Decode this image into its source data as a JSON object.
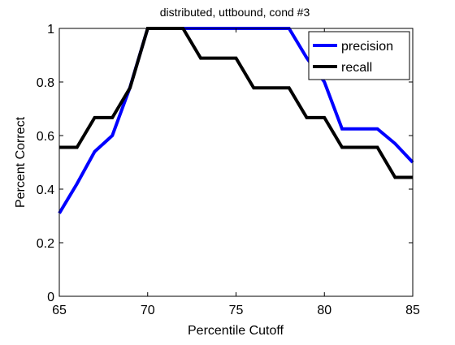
{
  "chart_data": {
    "type": "line",
    "title": "distributed, uttbound, cond #3",
    "xlabel": "Percentile Cutoff",
    "ylabel": "Percent Correct",
    "xlim": [
      65,
      85
    ],
    "ylim": [
      0,
      1
    ],
    "x_ticks": [
      "65",
      "70",
      "75",
      "80",
      "85"
    ],
    "y_ticks": [
      "0",
      "0.2",
      "0.4",
      "0.6",
      "0.8",
      "1"
    ],
    "x_tick_values": [
      65,
      70,
      75,
      80,
      85
    ],
    "y_tick_values": [
      0,
      0.2,
      0.4,
      0.6,
      0.8,
      1
    ],
    "grid": false,
    "legend_position": "top-right",
    "x": [
      65,
      66,
      67,
      68,
      69,
      70,
      71,
      72,
      73,
      74,
      75,
      76,
      77,
      78,
      79,
      80,
      81,
      82,
      83,
      84,
      85
    ],
    "series": [
      {
        "name": "precision",
        "color": "#0000ff",
        "values": [
          0.31,
          0.42,
          0.54,
          0.6,
          0.78,
          1,
          1,
          1,
          1,
          1,
          1,
          1,
          1,
          1,
          0.89,
          0.8,
          0.625,
          0.625,
          0.625,
          0.57,
          0.5
        ]
      },
      {
        "name": "recall",
        "color": "#000000",
        "values": [
          0.556,
          0.556,
          0.667,
          0.667,
          0.778,
          1,
          1,
          1,
          0.889,
          0.889,
          0.889,
          0.778,
          0.778,
          0.778,
          0.667,
          0.667,
          0.556,
          0.556,
          0.556,
          0.444,
          0.444
        ]
      }
    ]
  }
}
